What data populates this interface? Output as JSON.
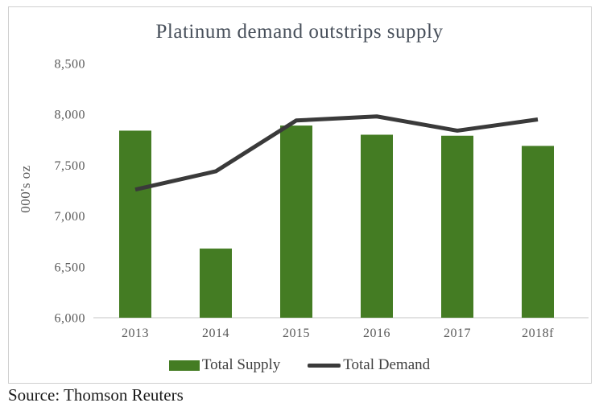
{
  "title": "Platinum demand outstrips supply",
  "source": "Source: Thomson Reuters",
  "y_axis": {
    "title": "000's oz",
    "tick_labels": [
      "8,500",
      "8,000",
      "7,500",
      "7,000",
      "6,500",
      "6,000"
    ]
  },
  "x_axis": {
    "tick_labels": [
      "2013",
      "2014",
      "2015",
      "2016",
      "2017",
      "2018f"
    ]
  },
  "legend": [
    {
      "label": "Total Supply",
      "type": "bar",
      "color": "#447C23"
    },
    {
      "label": "Total Demand",
      "type": "line",
      "color": "#3A3A3A"
    }
  ],
  "colors": {
    "bar_green": "#447C23",
    "line_dark": "#3A3A3A",
    "axis_text": "#595959",
    "title_text": "#474f5a",
    "axis_line": "#d9d9d9"
  },
  "chart_data": {
    "type": "bar",
    "subtype": "bar-and-line-combo",
    "categories": [
      "2013",
      "2014",
      "2015",
      "2016",
      "2017",
      "2018f"
    ],
    "series": [
      {
        "name": "Total Supply",
        "type": "bar",
        "color": "#447C23",
        "values": [
          7840,
          6680,
          7890,
          7800,
          7790,
          7690
        ]
      },
      {
        "name": "Total Demand",
        "type": "line",
        "color": "#3A3A3A",
        "values": [
          7260,
          7440,
          7940,
          7980,
          7840,
          7950
        ]
      }
    ],
    "title": "Platinum demand outstrips supply",
    "xlabel": "",
    "ylabel": "000's oz",
    "ylim": [
      6000,
      8500
    ],
    "ytick_step": 500,
    "grid": false,
    "legend_position": "bottom"
  }
}
